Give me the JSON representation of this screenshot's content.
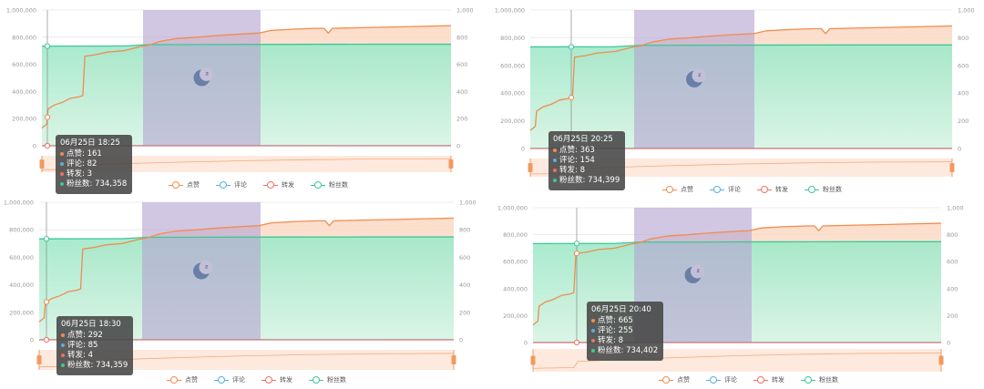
{
  "legend": [
    "点赞",
    "评论",
    "转发",
    "粉丝数"
  ],
  "colors": {
    "likes": "#f08c50",
    "comments": "#5aaee0",
    "shares": "#f07060",
    "fans": "#3cc896",
    "night": "#b4a5d2",
    "zoom": "#fbd7c3",
    "handle": "#f09a60",
    "axis": "#999999",
    "grid": "#e6e6e6"
  },
  "icons": {
    "night_marker": "moon-icon"
  },
  "chart_data": [
    {
      "type": "line",
      "left_axis": {
        "ticks": [
          "0",
          "200,000",
          "400,000",
          "600,000",
          "800,000",
          "1,000,000"
        ],
        "range": [
          0,
          1000000
        ]
      },
      "right_axis": {
        "ticks": [
          "0",
          "200",
          "400",
          "600",
          "800",
          "1,000"
        ],
        "range": [
          0,
          1000
        ]
      },
      "series": [
        {
          "name": "点赞",
          "axis": "left"
        },
        {
          "name": "评论",
          "axis": "right"
        },
        {
          "name": "转发",
          "axis": "right"
        },
        {
          "name": "粉丝数",
          "axis": "left"
        }
      ],
      "tooltip": {
        "title": "06月25日 18:25",
        "rows": [
          {
            "label": "点赞",
            "value": "161",
            "series": "likes"
          },
          {
            "label": "评论",
            "value": "82",
            "series": "comments"
          },
          {
            "label": "转发",
            "value": "3",
            "series": "shares"
          },
          {
            "label": "粉丝数",
            "value": "734,358",
            "series": "fans"
          }
        ]
      }
    },
    {
      "type": "line",
      "left_axis": {
        "ticks": [
          "0",
          "200,000",
          "400,000",
          "600,000",
          "800,000",
          "1,000,000"
        ],
        "range": [
          0,
          1000000
        ]
      },
      "right_axis": {
        "ticks": [
          "0",
          "200",
          "400",
          "600",
          "800",
          "1,000"
        ],
        "range": [
          0,
          1000
        ]
      },
      "series": [
        {
          "name": "点赞",
          "axis": "left"
        },
        {
          "name": "评论",
          "axis": "right"
        },
        {
          "name": "转发",
          "axis": "right"
        },
        {
          "name": "粉丝数",
          "axis": "left"
        }
      ],
      "tooltip": {
        "title": "06月25日 20:25",
        "rows": [
          {
            "label": "点赞",
            "value": "363",
            "series": "likes"
          },
          {
            "label": "评论",
            "value": "154",
            "series": "comments"
          },
          {
            "label": "转发",
            "value": "8",
            "series": "shares"
          },
          {
            "label": "粉丝数",
            "value": "734,399",
            "series": "fans"
          }
        ]
      }
    },
    {
      "type": "line",
      "left_axis": {
        "ticks": [
          "0",
          "200,000",
          "400,000",
          "600,000",
          "800,000",
          "1,000,000"
        ],
        "range": [
          0,
          1000000
        ]
      },
      "right_axis": {
        "ticks": [
          "0",
          "200",
          "400",
          "600",
          "800",
          "1,000"
        ],
        "range": [
          0,
          1000
        ]
      },
      "series": [
        {
          "name": "点赞",
          "axis": "left"
        },
        {
          "name": "评论",
          "axis": "right"
        },
        {
          "name": "转发",
          "axis": "right"
        },
        {
          "name": "粉丝数",
          "axis": "left"
        }
      ],
      "tooltip": {
        "title": "06月25日 18:30",
        "rows": [
          {
            "label": "点赞",
            "value": "292",
            "series": "likes"
          },
          {
            "label": "评论",
            "value": "85",
            "series": "comments"
          },
          {
            "label": "转发",
            "value": "4",
            "series": "shares"
          },
          {
            "label": "粉丝数",
            "value": "734,359",
            "series": "fans"
          }
        ]
      }
    },
    {
      "type": "line",
      "left_axis": {
        "ticks": [
          "0",
          "200,000",
          "400,000",
          "600,000",
          "800,000",
          "1,000,000"
        ],
        "range": [
          0,
          1000000
        ]
      },
      "right_axis": {
        "ticks": [
          "0",
          "200",
          "400",
          "600",
          "800",
          "1,000"
        ],
        "range": [
          0,
          1000
        ]
      },
      "series": [
        {
          "name": "点赞",
          "axis": "left"
        },
        {
          "name": "评论",
          "axis": "right"
        },
        {
          "name": "转发",
          "axis": "right"
        },
        {
          "name": "粉丝数",
          "axis": "left"
        }
      ],
      "tooltip": {
        "title": "06月25日 20:40",
        "rows": [
          {
            "label": "点赞",
            "value": "665",
            "series": "likes"
          },
          {
            "label": "评论",
            "value": "255",
            "series": "comments"
          },
          {
            "label": "转发",
            "value": "8",
            "series": "shares"
          },
          {
            "label": "粉丝数",
            "value": "734,402",
            "series": "fans"
          }
        ]
      }
    }
  ]
}
